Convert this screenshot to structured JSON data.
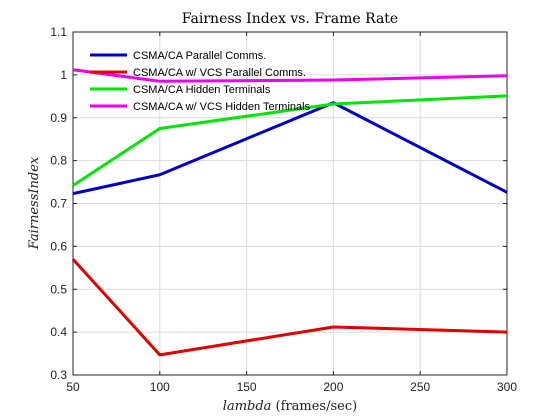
{
  "chart_data": {
    "type": "line",
    "title": "Fairness Index vs. Frame Rate",
    "xlabel_italic": "lambda",
    "xlabel_rest": " (frames/sec)",
    "ylabel": "FairnessIndex",
    "x": [
      50,
      100,
      200,
      300
    ],
    "xlim": [
      50,
      300
    ],
    "ylim": [
      0.3,
      1.1
    ],
    "xticks": [
      50,
      100,
      150,
      200,
      250,
      300
    ],
    "yticks": [
      0.3,
      0.4,
      0.5,
      0.6,
      0.7,
      0.8,
      0.9,
      1,
      1.1
    ],
    "grid": true,
    "legend_position": "top-left",
    "series": [
      {
        "name": "CSMA/CA Parallel Comms.",
        "color": "#0000c8",
        "values": [
          0.723,
          0.767,
          0.935,
          0.726
        ]
      },
      {
        "name": "CSMA/CA w/ VCS Parallel Comms.",
        "color": "#e00000",
        "values": [
          0.57,
          0.347,
          0.412,
          0.4
        ]
      },
      {
        "name": "CSMA/CA Hidden Terminals",
        "color": "#00e600",
        "values": [
          0.742,
          0.875,
          0.932,
          0.951
        ]
      },
      {
        "name": "CSMA/CA w/ VCS Hidden Terminals",
        "color": "#ee00ee",
        "values": [
          1.012,
          0.985,
          0.988,
          0.998
        ]
      }
    ]
  }
}
